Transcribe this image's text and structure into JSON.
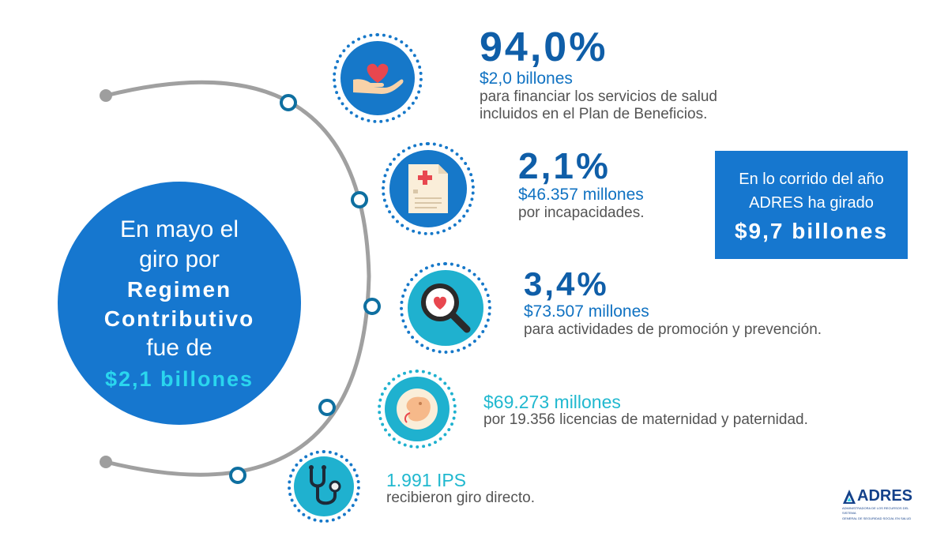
{
  "colors": {
    "primary": "#1677cf",
    "accent_teal": "#2ad6ee",
    "dark_blue": "#0f5ea8",
    "text_gray": "#545454",
    "arc_gray": "#9e9e9e"
  },
  "main_circle": {
    "line1": "En mayo el",
    "line2": "giro por",
    "line3": "Regimen",
    "line4": "Contributivo",
    "line5": "fue de",
    "amount": "$2,1 billones"
  },
  "items": [
    {
      "percent": "94,0%",
      "amount": "$2,0 billones",
      "desc1": "para financiar los servicios de salud",
      "desc2": "incluidos en el Plan de Beneficios.",
      "icon": "heart-in-hand-icon"
    },
    {
      "percent": "2,1%",
      "amount": "$46.357 millones",
      "desc1": "por incapacidades.",
      "icon": "medical-document-icon"
    },
    {
      "percent": "3,4%",
      "amount": "$73.507 millones",
      "desc1": "para actividades de promoción y prevención.",
      "icon": "magnifier-heart-icon"
    },
    {
      "amount": "$69.273 millones",
      "desc1": "por 19.356 licencias de maternidad y paternidad.",
      "icon": "fetus-icon"
    },
    {
      "amount": "1.991 IPS",
      "desc1": "recibieron giro directo.",
      "icon": "stethoscope-icon"
    }
  ],
  "ytd_box": {
    "line1": "En lo corrido del año",
    "line2": "ADRES ha girado",
    "value": "$9,7 billones"
  },
  "logo": {
    "name": "ADRES",
    "tagline1": "ADMINISTRADORA DE LOS RECURSOS DEL SISTEMA",
    "tagline2": "GENERAL DE SEGURIDAD SOCIAL EN SALUD"
  }
}
